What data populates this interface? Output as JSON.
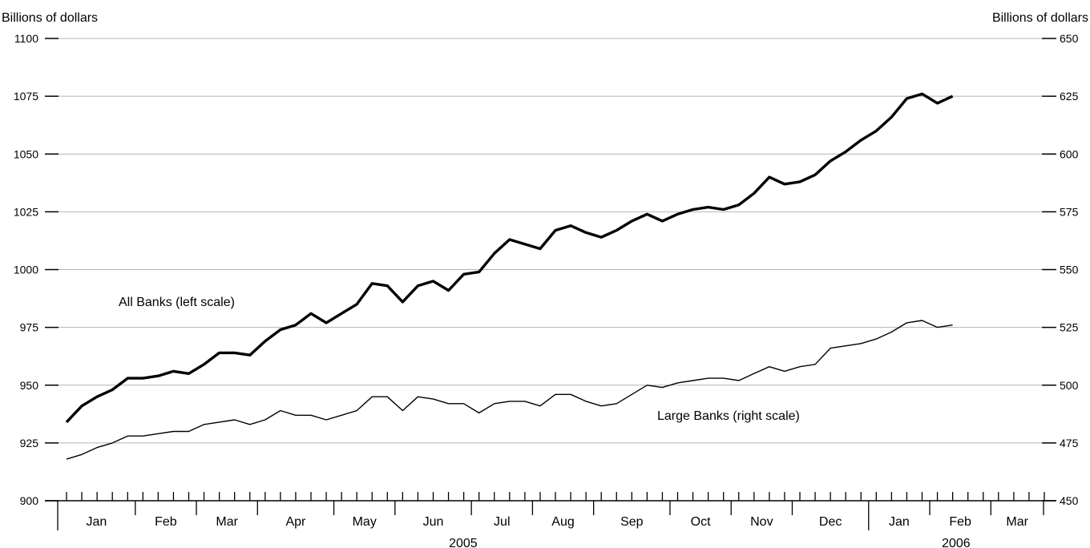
{
  "chart_data": {
    "type": "line",
    "left_axis_title": "Billions of dollars",
    "right_axis_title": "Billions of dollars",
    "left_ylim": [
      900,
      1100
    ],
    "left_ticks": [
      900,
      925,
      950,
      975,
      1000,
      1025,
      1050,
      1075,
      1100
    ],
    "right_ylim": [
      450,
      650
    ],
    "right_ticks": [
      450,
      475,
      500,
      525,
      550,
      575,
      600,
      625,
      650
    ],
    "grid": true,
    "months": [
      "Jan",
      "Feb",
      "Mar",
      "Apr",
      "May",
      "Jun",
      "Jul",
      "Aug",
      "Sep",
      "Oct",
      "Nov",
      "Dec",
      "Jan",
      "Feb",
      "Mar"
    ],
    "weeks_per_month": [
      5,
      4,
      4,
      5,
      4,
      5,
      4,
      4,
      5,
      4,
      4,
      5,
      4,
      4,
      4
    ],
    "years": [
      {
        "label": "2005",
        "month_span": [
          0,
          11
        ]
      },
      {
        "label": "2006",
        "month_span": [
          12,
          14
        ]
      }
    ],
    "series": [
      {
        "name": "All Banks (left scale)",
        "axis": "left",
        "values": [
          934,
          941,
          945,
          948,
          953,
          953,
          954,
          956,
          955,
          959,
          964,
          964,
          963,
          969,
          974,
          976,
          981,
          977,
          981,
          985,
          994,
          993,
          986,
          993,
          995,
          991,
          998,
          999,
          1007,
          1013,
          1011,
          1009,
          1017,
          1019,
          1016,
          1014,
          1017,
          1021,
          1024,
          1021,
          1024,
          1026,
          1027,
          1026,
          1028,
          1033,
          1040,
          1037,
          1038,
          1041,
          1047,
          1051,
          1056,
          1060,
          1066,
          1074,
          1076,
          1072,
          1075
        ]
      },
      {
        "name": "Large Banks (right scale)",
        "axis": "right",
        "values": [
          468,
          470,
          473,
          475,
          478,
          478,
          479,
          480,
          480,
          483,
          484,
          485,
          483,
          485,
          489,
          487,
          487,
          485,
          487,
          489,
          495,
          495,
          489,
          495,
          494,
          492,
          492,
          488,
          492,
          493,
          493,
          491,
          496,
          496,
          493,
          491,
          492,
          496,
          500,
          499,
          501,
          502,
          503,
          503,
          502,
          505,
          508,
          506,
          508,
          509,
          516,
          517,
          518,
          520,
          523,
          527,
          528,
          525,
          526
        ]
      }
    ],
    "annotations": [
      {
        "text": "All Banks (left scale)",
        "series": 0
      },
      {
        "text": "Large Banks (right scale)",
        "series": 1
      }
    ]
  }
}
